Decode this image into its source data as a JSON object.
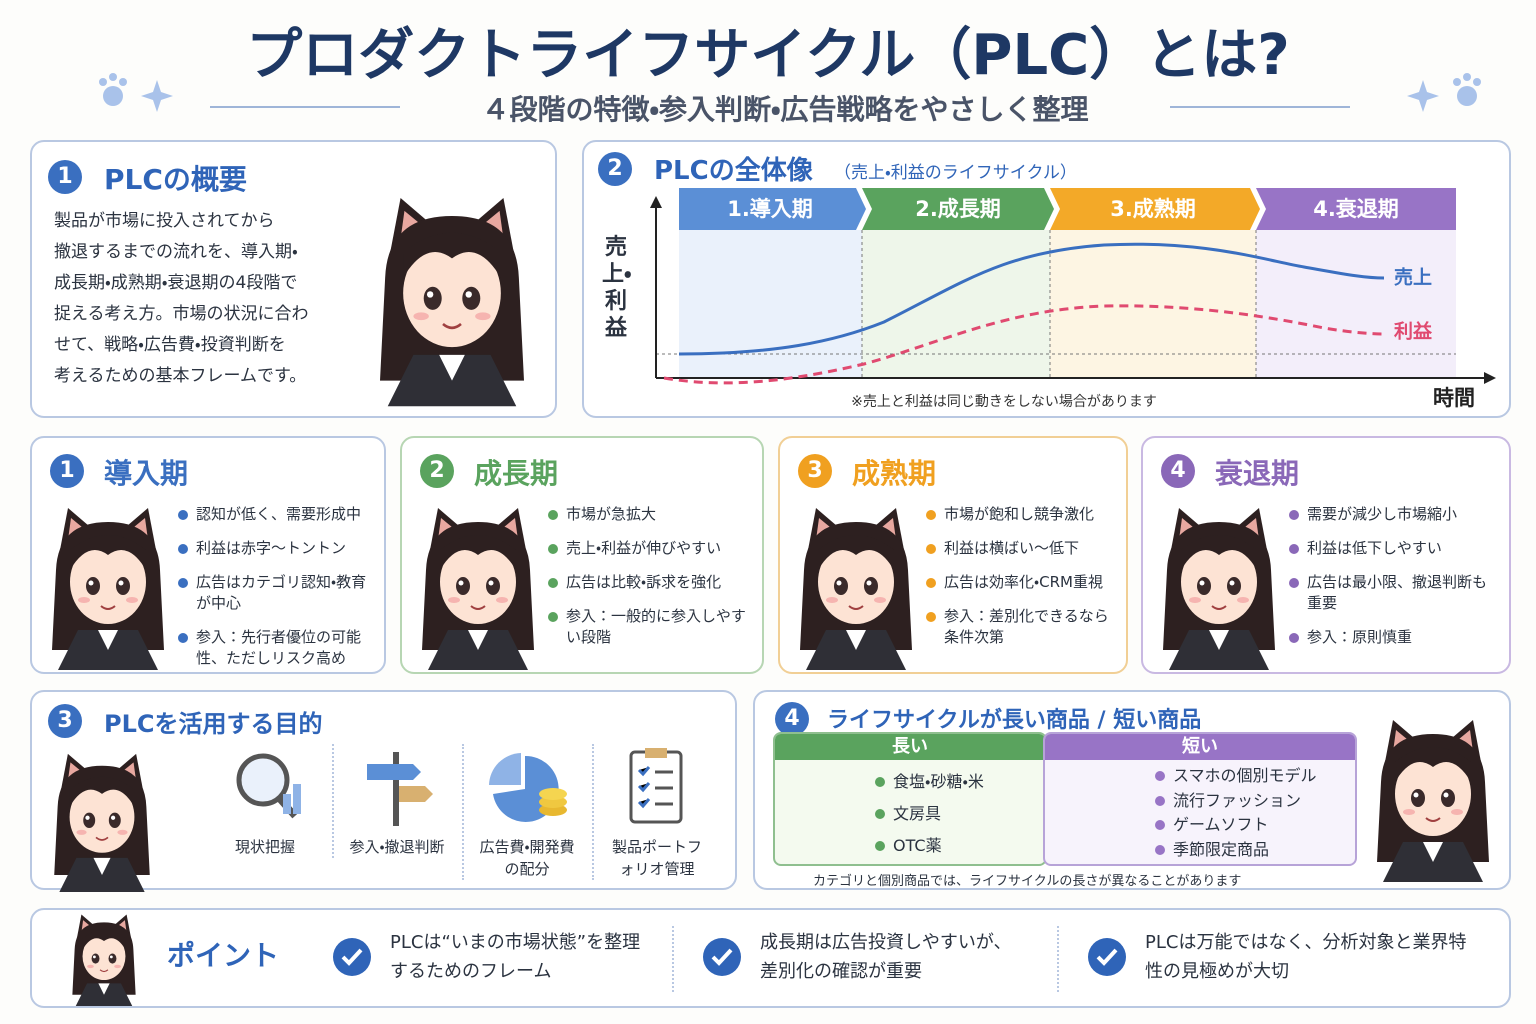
{
  "header": {
    "title": "プロダクトライフサイクル（PLC）とは?",
    "subtitle": "４段階の特徴・参入判断・広告戦略をやさしく整理"
  },
  "overview": {
    "number": "1",
    "heading": "PLCの概要",
    "lines": [
      "製品が市場に投入されてから",
      "撤退するまでの流れを、導入期・",
      "成長期・成熟期・衰退期の4段階で",
      "捉える考え方。市場の状況に合わ",
      "せて、戦略・広告費・投資判断を",
      "考えるための基本フレームです。"
    ]
  },
  "lifecycle": {
    "number": "2",
    "heading": "PLCの全体像",
    "subheading": "（売上・利益のライフサイクル）",
    "stages": [
      "1.導入期",
      "2.成長期",
      "3.成熟期",
      "4.衰退期"
    ],
    "y_label": "売上・利益",
    "x_label": "時間",
    "sales_label": "売上",
    "profit_label": "利益",
    "note": "※売上と利益は同じ動きをしない場合があります"
  },
  "stages": [
    {
      "number": "1",
      "title": "導入期",
      "bullets": [
        "認知が低く、需要形成中",
        "利益は赤字〜トントン",
        "広告はカテゴリ認知・教育が中心",
        "参入：先行者優位の可能性、ただしリスク高め"
      ]
    },
    {
      "number": "2",
      "title": "成長期",
      "bullets": [
        "市場が急拡大",
        "売上・利益が伸びやすい",
        "広告は比較・訴求を強化",
        "参入：一般的に参入しやすい段階"
      ]
    },
    {
      "number": "3",
      "title": "成熟期",
      "bullets": [
        "市場が飽和し競争激化",
        "利益は横ばい〜低下",
        "広告は効率化・CRM重視",
        "参入：差別化できるなら条件次第"
      ]
    },
    {
      "number": "4",
      "title": "衰退期",
      "bullets": [
        "需要が減少し市場縮小",
        "利益は低下しやすい",
        "広告は最小限、撤退判断も重要",
        "参入：原則慎重"
      ]
    }
  ],
  "purpose": {
    "number": "3",
    "heading": "PLCを活用する目的",
    "items": [
      "現状把握",
      "参入・撤退判断",
      "広告費・開発費の配分",
      "製品ポートフォリオ管理"
    ]
  },
  "comparison": {
    "number": "4",
    "heading": "ライフサイクルが長い商品 / 短い商品",
    "long": {
      "label": "長い",
      "items": [
        "食塩・砂糖・米",
        "文房具",
        "OTC薬"
      ]
    },
    "short": {
      "label": "短い",
      "items": [
        "スマホの個別モデル",
        "流行ファッション",
        "ゲームソフト",
        "季節限定商品"
      ]
    },
    "note": "カテゴリと個別商品では、ライフサイクルの長さが異なることがあります"
  },
  "points": {
    "label": "ポイント",
    "items": [
      "PLCは“いまの市場状態”を整理するためのフレーム",
      "成長期は広告投資しやすいが、差別化の確認が重要",
      "PLCは万能ではなく、分析対象と業界特性の見極めが大切"
    ]
  }
}
